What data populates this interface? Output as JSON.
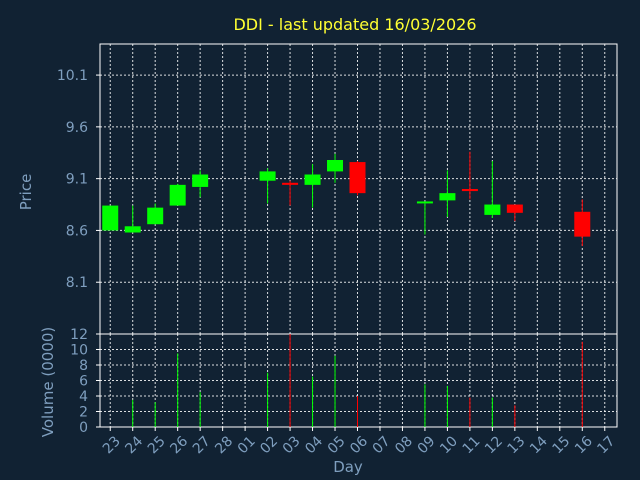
{
  "title": "DDI - last updated 16/03/2026",
  "colors": {
    "background": "#112233",
    "plot_border": "#ffffff",
    "grid": "#ffffff",
    "axis_text": "#7f9fbf",
    "title": "#ffff33",
    "up": "#00ff00",
    "down": "#ff0000"
  },
  "chart_data": [
    {
      "type": "candlestick",
      "title": "DDI - last updated 16/03/2026",
      "ylabel": "Price",
      "ylim": [
        7.6,
        10.4
      ],
      "yticks": [
        8.1,
        8.6,
        9.1,
        9.6,
        10.1
      ],
      "ytick_labels": [
        "8.1",
        "8.6",
        "9.1",
        "9.6",
        "10.1"
      ],
      "grid": true,
      "categories": [
        "23",
        "24",
        "25",
        "26",
        "27",
        "28",
        "01",
        "02",
        "03",
        "04",
        "05",
        "06",
        "07",
        "08",
        "09",
        "10",
        "11",
        "12",
        "13",
        "14",
        "15",
        "16",
        "17"
      ],
      "candles": [
        {
          "x": 0,
          "open": 8.6,
          "high": 8.84,
          "low": 8.6,
          "close": 8.84
        },
        {
          "x": 1,
          "open": 8.58,
          "high": 8.84,
          "low": 8.58,
          "close": 8.64
        },
        {
          "x": 2,
          "open": 8.66,
          "high": 8.86,
          "low": 8.66,
          "close": 8.82
        },
        {
          "x": 3,
          "open": 8.84,
          "high": 9.05,
          "low": 8.84,
          "close": 9.04
        },
        {
          "x": 4,
          "open": 9.02,
          "high": 9.18,
          "low": 8.92,
          "close": 9.14
        },
        {
          "x": 7,
          "open": 9.08,
          "high": 9.2,
          "low": 8.86,
          "close": 9.17
        },
        {
          "x": 8,
          "open": 9.06,
          "high": 9.08,
          "low": 8.84,
          "close": 9.04
        },
        {
          "x": 9,
          "open": 9.04,
          "high": 9.24,
          "low": 8.82,
          "close": 9.14
        },
        {
          "x": 10,
          "open": 9.17,
          "high": 9.34,
          "low": 9.06,
          "close": 9.28
        },
        {
          "x": 11,
          "open": 9.26,
          "high": 9.27,
          "low": 8.94,
          "close": 8.96
        },
        {
          "x": 14,
          "open": 8.87,
          "high": 8.88,
          "low": 8.56,
          "close": 8.88
        },
        {
          "x": 15,
          "open": 8.89,
          "high": 9.18,
          "low": 8.73,
          "close": 8.96
        },
        {
          "x": 16,
          "open": 9.0,
          "high": 9.36,
          "low": 8.9,
          "close": 8.98
        },
        {
          "x": 17,
          "open": 8.75,
          "high": 9.27,
          "low": 8.72,
          "close": 8.85
        },
        {
          "x": 18,
          "open": 8.85,
          "high": 8.85,
          "low": 8.69,
          "close": 8.77
        },
        {
          "x": 21,
          "open": 8.78,
          "high": 8.9,
          "low": 8.45,
          "close": 8.54
        }
      ]
    },
    {
      "type": "bar",
      "title": "",
      "xlabel": "Day",
      "ylabel": "Volume (0000)",
      "ylim": [
        0,
        12
      ],
      "yticks": [
        0,
        2,
        4,
        6,
        8,
        10,
        12
      ],
      "ytick_labels": [
        "0",
        "2",
        "4",
        "6",
        "8",
        "10",
        "12"
      ],
      "grid": true,
      "categories": [
        "23",
        "24",
        "25",
        "26",
        "27",
        "28",
        "01",
        "02",
        "03",
        "04",
        "05",
        "06",
        "07",
        "08",
        "09",
        "10",
        "11",
        "12",
        "13",
        "14",
        "15",
        "16",
        "17"
      ],
      "bars": [
        {
          "x": 1,
          "value": 3.5,
          "direction": "up"
        },
        {
          "x": 2,
          "value": 3.2,
          "direction": "up"
        },
        {
          "x": 3,
          "value": 9.5,
          "direction": "up"
        },
        {
          "x": 4,
          "value": 4.5,
          "direction": "up"
        },
        {
          "x": 7,
          "value": 7.0,
          "direction": "up"
        },
        {
          "x": 8,
          "value": 12.0,
          "direction": "down"
        },
        {
          "x": 9,
          "value": 6.5,
          "direction": "up"
        },
        {
          "x": 10,
          "value": 9.2,
          "direction": "up"
        },
        {
          "x": 11,
          "value": 4.0,
          "direction": "down"
        },
        {
          "x": 14,
          "value": 5.5,
          "direction": "up"
        },
        {
          "x": 15,
          "value": 5.3,
          "direction": "up"
        },
        {
          "x": 16,
          "value": 3.8,
          "direction": "down"
        },
        {
          "x": 17,
          "value": 3.8,
          "direction": "up"
        },
        {
          "x": 18,
          "value": 2.8,
          "direction": "down"
        },
        {
          "x": 21,
          "value": 11.0,
          "direction": "down"
        }
      ]
    }
  ]
}
